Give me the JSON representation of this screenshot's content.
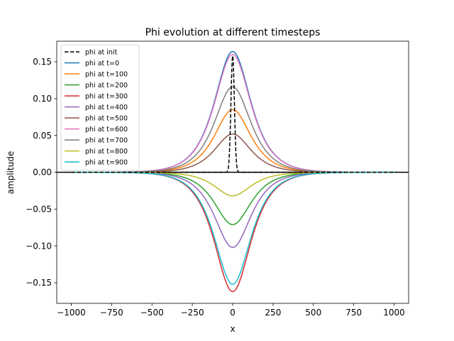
{
  "chart_data": {
    "type": "line",
    "title": "Phi evolution at different timesteps",
    "xlabel": "x",
    "ylabel": "amplitude",
    "xlim": [
      -1090,
      1090
    ],
    "ylim": [
      -0.178,
      0.178
    ],
    "xticks": [
      -1000,
      -750,
      -500,
      -250,
      0,
      250,
      500,
      750,
      1000
    ],
    "xtick_labels": [
      "−1000",
      "−750",
      "−500",
      "−250",
      "0",
      "250",
      "500",
      "750",
      "1000"
    ],
    "yticks": [
      -0.15,
      -0.1,
      -0.05,
      0.0,
      0.05,
      0.1,
      0.15
    ],
    "ytick_labels": [
      "−0.15",
      "−0.10",
      "−0.05",
      "0.00",
      "0.05",
      "0.10",
      "0.15"
    ],
    "grid": false,
    "legend_position": "upper-left",
    "x_range": [
      -1000,
      1000
    ],
    "series": [
      {
        "name": "phi at init",
        "kind": "gaussian",
        "peak": 0.158,
        "center": 0,
        "width": 15,
        "color": "#000000",
        "dashed": true
      },
      {
        "name": "phi at t=0",
        "kind": "sech",
        "peak": 0.164,
        "center": 0,
        "width": 100,
        "color": "#1f77b4",
        "dashed": false
      },
      {
        "name": "phi at t=100",
        "kind": "sech",
        "peak": 0.085,
        "center": 0,
        "width": 100,
        "color": "#ff7f0e",
        "dashed": false
      },
      {
        "name": "phi at t=200",
        "kind": "sech",
        "peak": -0.071,
        "center": 0,
        "width": 100,
        "color": "#2ca02c",
        "dashed": false
      },
      {
        "name": "phi at t=300",
        "kind": "sech",
        "peak": -0.162,
        "center": 0,
        "width": 100,
        "color": "#d62728",
        "dashed": false
      },
      {
        "name": "phi at t=400",
        "kind": "sech",
        "peak": -0.102,
        "center": 0,
        "width": 100,
        "color": "#9467bd",
        "dashed": false
      },
      {
        "name": "phi at t=500",
        "kind": "sech",
        "peak": 0.052,
        "center": 0,
        "width": 100,
        "color": "#8c564b",
        "dashed": false
      },
      {
        "name": "phi at t=600",
        "kind": "sech",
        "peak": 0.16,
        "center": 0,
        "width": 100,
        "color": "#e377c2",
        "dashed": false
      },
      {
        "name": "phi at t=700",
        "kind": "sech",
        "peak": 0.116,
        "center": 0,
        "width": 100,
        "color": "#7f7f7f",
        "dashed": false
      },
      {
        "name": "phi at t=800",
        "kind": "sech",
        "peak": -0.032,
        "center": 0,
        "width": 100,
        "color": "#bcbd22",
        "dashed": false
      },
      {
        "name": "phi at t=900",
        "kind": "sech",
        "peak": -0.152,
        "center": 0,
        "width": 100,
        "color": "#17becf",
        "dashed": false
      }
    ]
  }
}
